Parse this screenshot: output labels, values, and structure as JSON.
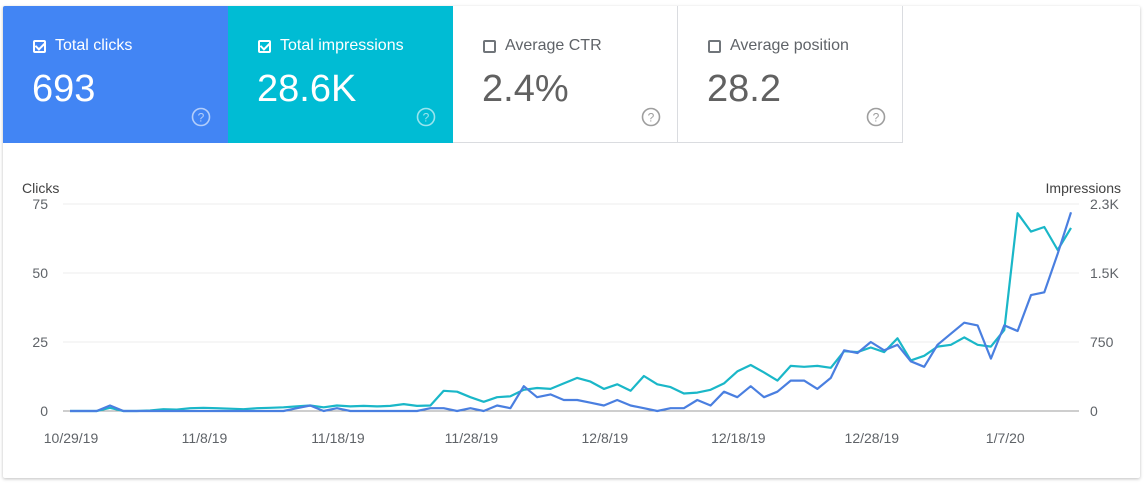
{
  "cards": [
    {
      "id": "clicks",
      "label": "Total clicks",
      "value": "693",
      "checked": true,
      "color": "#4285f4"
    },
    {
      "id": "impressions",
      "label": "Total impressions",
      "value": "28.6K",
      "checked": true,
      "color": "#00bcd4"
    },
    {
      "id": "ctr",
      "label": "Average CTR",
      "value": "2.4%",
      "checked": false
    },
    {
      "id": "position",
      "label": "Average position",
      "value": "28.2",
      "checked": false
    }
  ],
  "chart_data": {
    "type": "line",
    "left_axis": {
      "label": "Clicks",
      "ticks": [
        0,
        25,
        50,
        75
      ],
      "tick_labels": [
        "0",
        "25",
        "50",
        "75"
      ],
      "range": [
        0,
        75
      ]
    },
    "right_axis": {
      "label": "Impressions",
      "ticks": [
        0,
        750,
        1500,
        2250
      ],
      "tick_labels": [
        "0",
        "750",
        "1.5K",
        "2.3K"
      ],
      "range": [
        0,
        2250
      ]
    },
    "x_tick_labels": [
      "10/29/19",
      "11/8/19",
      "11/18/19",
      "11/28/19",
      "12/8/19",
      "12/18/19",
      "12/28/19",
      "1/7/20"
    ],
    "x_tick_index": [
      0,
      10,
      20,
      30,
      40,
      50,
      60,
      70
    ],
    "grid": true,
    "series": [
      {
        "name": "Clicks",
        "axis": "left",
        "color": "#4a7fe0",
        "values": [
          0,
          0,
          0,
          2,
          0,
          0,
          0,
          0,
          0,
          0,
          0,
          0,
          0,
          0,
          0,
          0,
          0,
          1,
          2,
          0,
          1,
          0,
          0,
          0,
          0,
          0,
          0,
          1,
          1,
          0,
          1,
          0,
          2,
          1,
          9,
          5,
          6,
          4,
          4,
          3,
          2,
          4,
          2,
          1,
          0,
          1,
          1,
          4,
          2,
          7,
          5,
          9,
          5,
          7,
          11,
          11,
          8,
          12,
          22,
          21,
          25,
          22,
          24,
          18,
          16,
          24,
          28,
          32,
          31,
          19,
          31,
          29,
          42,
          43,
          57,
          72
        ]
      },
      {
        "name": "Impressions",
        "axis": "right",
        "color": "#1ab7c8",
        "values": [
          0,
          0,
          0,
          35,
          0,
          0,
          5,
          20,
          15,
          30,
          35,
          30,
          25,
          20,
          30,
          35,
          40,
          50,
          60,
          40,
          60,
          50,
          55,
          50,
          55,
          75,
          55,
          60,
          220,
          210,
          150,
          100,
          150,
          160,
          230,
          250,
          240,
          300,
          360,
          320,
          240,
          290,
          220,
          380,
          290,
          260,
          190,
          200,
          230,
          300,
          430,
          500,
          420,
          330,
          490,
          480,
          490,
          470,
          650,
          640,
          690,
          640,
          790,
          550,
          600,
          700,
          720,
          800,
          720,
          700,
          880,
          2150,
          1950,
          2000,
          1750,
          1990
        ]
      }
    ]
  }
}
